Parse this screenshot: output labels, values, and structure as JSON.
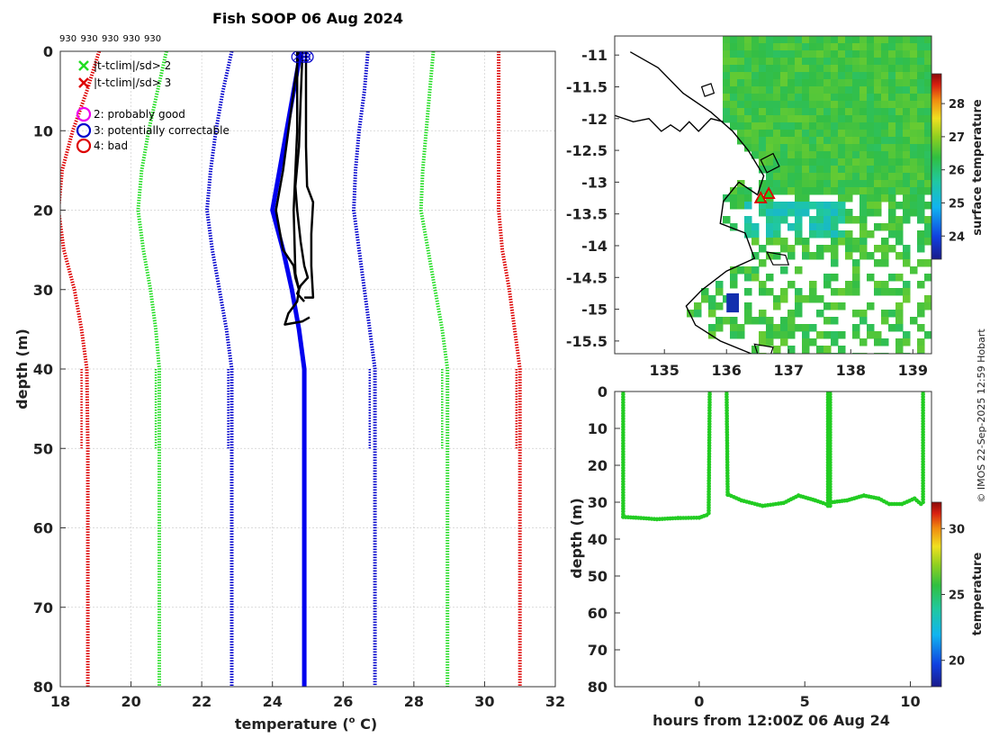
{
  "chart_data": [
    {
      "id": "profile",
      "type": "line",
      "title": "Fish SOOP 06 Aug 2024",
      "xlabel": "temperature (°C)",
      "xlabel_main": "temperature (",
      "xlabel_sup": "o",
      "xlabel_end": " C)",
      "ylabel": "depth (m)",
      "xlim": [
        18,
        32
      ],
      "ylim": [
        0,
        80
      ],
      "y_reversed": true,
      "xticks": [
        18,
        20,
        22,
        24,
        26,
        28,
        30,
        32
      ],
      "yticks": [
        0,
        10,
        20,
        30,
        40,
        50,
        60,
        70,
        80
      ],
      "grid": true,
      "top_labels": [
        "930",
        "930",
        "930",
        "930",
        "930"
      ],
      "legend": [
        {
          "symbol": "x",
          "color": "#22dd22",
          "label": "|t-tclim|/sd> 2"
        },
        {
          "symbol": "x",
          "color": "#dd0000",
          "label": "|t-tclim|/sd> 3"
        },
        {
          "symbol": "o",
          "color": "#ee00ee",
          "label": "2: probably good"
        },
        {
          "symbol": "o",
          "color": "#0000cc",
          "label": "3: potentially correctable"
        },
        {
          "symbol": "o",
          "color": "#dd0000",
          "label": "4: bad"
        }
      ],
      "climatology_series": [
        {
          "name": "mean-3sd",
          "color": "#dd0000",
          "style": "dotted",
          "points": [
            [
              19.1,
              0
            ],
            [
              18.75,
              5
            ],
            [
              18.35,
              10
            ],
            [
              18.05,
              15
            ],
            [
              17.95,
              20
            ],
            [
              18.1,
              25
            ],
            [
              18.4,
              30
            ],
            [
              18.6,
              35
            ],
            [
              18.75,
              40
            ],
            [
              18.78,
              50
            ],
            [
              18.78,
              60
            ],
            [
              18.78,
              70
            ],
            [
              18.78,
              80
            ]
          ]
        },
        {
          "name": "mean-2sd",
          "color": "#22dd22",
          "style": "dotted",
          "points": [
            [
              21.0,
              0
            ],
            [
              20.75,
              5
            ],
            [
              20.5,
              10
            ],
            [
              20.3,
              15
            ],
            [
              20.2,
              20
            ],
            [
              20.35,
              25
            ],
            [
              20.55,
              30
            ],
            [
              20.7,
              35
            ],
            [
              20.8,
              40
            ],
            [
              20.8,
              50
            ],
            [
              20.8,
              60
            ],
            [
              20.8,
              70
            ],
            [
              20.8,
              80
            ]
          ]
        },
        {
          "name": "mean-sd",
          "color": "#0000cc",
          "style": "dotted",
          "points": [
            [
              22.85,
              0
            ],
            [
              22.6,
              5
            ],
            [
              22.4,
              10
            ],
            [
              22.25,
              15
            ],
            [
              22.15,
              20
            ],
            [
              22.3,
              25
            ],
            [
              22.5,
              30
            ],
            [
              22.7,
              35
            ],
            [
              22.85,
              40
            ],
            [
              22.85,
              50
            ],
            [
              22.85,
              60
            ],
            [
              22.85,
              70
            ],
            [
              22.85,
              80
            ]
          ]
        },
        {
          "name": "mean+sd",
          "color": "#0000cc",
          "style": "dotted",
          "points": [
            [
              26.7,
              0
            ],
            [
              26.6,
              5
            ],
            [
              26.45,
              10
            ],
            [
              26.35,
              15
            ],
            [
              26.3,
              20
            ],
            [
              26.45,
              25
            ],
            [
              26.6,
              30
            ],
            [
              26.75,
              35
            ],
            [
              26.9,
              40
            ],
            [
              26.9,
              50
            ],
            [
              26.9,
              60
            ],
            [
              26.9,
              70
            ],
            [
              26.9,
              80
            ]
          ]
        },
        {
          "name": "mean+2sd",
          "color": "#22dd22",
          "style": "dotted",
          "points": [
            [
              28.55,
              0
            ],
            [
              28.45,
              5
            ],
            [
              28.35,
              10
            ],
            [
              28.25,
              15
            ],
            [
              28.2,
              20
            ],
            [
              28.4,
              25
            ],
            [
              28.6,
              30
            ],
            [
              28.8,
              35
            ],
            [
              28.95,
              40
            ],
            [
              28.95,
              50
            ],
            [
              28.95,
              60
            ],
            [
              28.95,
              70
            ],
            [
              28.95,
              80
            ]
          ]
        },
        {
          "name": "mean+3sd",
          "color": "#dd0000",
          "style": "dotted",
          "points": [
            [
              30.4,
              0
            ],
            [
              30.4,
              5
            ],
            [
              30.4,
              10
            ],
            [
              30.4,
              15
            ],
            [
              30.4,
              20
            ],
            [
              30.5,
              25
            ],
            [
              30.7,
              30
            ],
            [
              30.85,
              35
            ],
            [
              31.0,
              40
            ],
            [
              31.0,
              50
            ],
            [
              31.0,
              60
            ],
            [
              31.0,
              70
            ],
            [
              31.0,
              80
            ]
          ]
        }
      ],
      "lower_dotted_series": [
        {
          "color": "#dd0000",
          "points": [
            [
              18.6,
              40
            ],
            [
              18.6,
              50
            ]
          ]
        },
        {
          "color": "#22dd22",
          "points": [
            [
              20.7,
              40
            ],
            [
              20.7,
              50
            ]
          ]
        },
        {
          "color": "#0000cc",
          "points": [
            [
              22.75,
              40
            ],
            [
              22.75,
              50
            ]
          ]
        },
        {
          "color": "#0000cc",
          "points": [
            [
              26.75,
              40
            ],
            [
              26.75,
              50
            ]
          ]
        },
        {
          "color": "#22dd22",
          "points": [
            [
              28.8,
              40
            ],
            [
              28.8,
              50
            ]
          ]
        },
        {
          "color": "#dd0000",
          "points": [
            [
              30.9,
              40
            ],
            [
              30.9,
              50
            ]
          ]
        }
      ],
      "mean_series": {
        "name": "climatology mean",
        "color": "#0000ee",
        "points": [
          [
            24.8,
            0
          ],
          [
            24.6,
            5
          ],
          [
            24.4,
            10
          ],
          [
            24.2,
            15
          ],
          [
            24.0,
            20
          ],
          [
            24.3,
            25
          ],
          [
            24.55,
            30
          ],
          [
            24.75,
            35
          ],
          [
            24.9,
            40
          ],
          [
            24.9,
            50
          ],
          [
            24.9,
            60
          ],
          [
            24.9,
            70
          ],
          [
            24.9,
            80
          ]
        ]
      },
      "observed_profiles": [
        {
          "color": "#000000",
          "points": [
            [
              24.75,
              0
            ],
            [
              24.6,
              5
            ],
            [
              24.45,
              10
            ],
            [
              24.3,
              15
            ],
            [
              24.1,
              20
            ],
            [
              24.3,
              25
            ],
            [
              24.6,
              27
            ],
            [
              24.65,
              28.5
            ],
            [
              24.75,
              30
            ],
            [
              24.7,
              31.5
            ],
            [
              24.45,
              33
            ],
            [
              24.35,
              34.4
            ],
            [
              24.85,
              34
            ],
            [
              25.05,
              33.5
            ]
          ]
        },
        {
          "color": "#000000",
          "points": [
            [
              24.85,
              0
            ],
            [
              24.8,
              6
            ],
            [
              24.75,
              12
            ],
            [
              24.65,
              17
            ],
            [
              24.7,
              20
            ],
            [
              24.8,
              24
            ],
            [
              24.9,
              27
            ],
            [
              25.0,
              28.5
            ],
            [
              24.8,
              29.5
            ],
            [
              24.7,
              30.5
            ],
            [
              24.9,
              31.5
            ]
          ]
        },
        {
          "color": "#000000",
          "points": [
            [
              24.95,
              0
            ],
            [
              24.95,
              6
            ],
            [
              24.95,
              12
            ],
            [
              24.98,
              17
            ],
            [
              25.15,
              19
            ],
            [
              25.1,
              23
            ],
            [
              25.1,
              27
            ],
            [
              25.15,
              31
            ],
            [
              24.9,
              31
            ]
          ]
        },
        {
          "color": "#000000",
          "points": [
            [
              24.7,
              0
            ],
            [
              24.7,
              10
            ],
            [
              24.6,
              20
            ],
            [
              24.65,
              28
            ],
            [
              24.75,
              30
            ]
          ]
        }
      ],
      "flag_points": [
        {
          "x": 24.7,
          "y": 0.7
        },
        {
          "x": 24.9,
          "y": 0.7
        },
        {
          "x": 25.0,
          "y": 0.7
        }
      ]
    },
    {
      "id": "map",
      "type": "heatmap",
      "xlim": [
        134.2,
        139.3
      ],
      "ylim": [
        -15.7,
        -10.7
      ],
      "xticks": [
        135,
        136,
        137,
        138,
        139
      ],
      "yticks": [
        -11,
        -11.5,
        -12,
        -12.5,
        -13,
        -13.5,
        -14,
        -14.5,
        -15,
        -15.5
      ],
      "ytick_labels": [
        "-11",
        "-11.5",
        "-12",
        "-12.5",
        "-13",
        "-13.5",
        "-14",
        "-14.5",
        "-15",
        "-15.5"
      ],
      "colorbar_label": "surface temperature",
      "colorbar_range": [
        23.3,
        28.9
      ],
      "colorbar_ticks": [
        24,
        25,
        26,
        27,
        28
      ],
      "coastline": [
        [
          134.45,
          -10.95
        ],
        [
          134.9,
          -11.2
        ],
        [
          135.3,
          -11.6
        ],
        [
          135.75,
          -11.9
        ],
        [
          136.1,
          -12.2
        ],
        [
          136.35,
          -12.5
        ],
        [
          136.6,
          -12.9
        ],
        [
          136.5,
          -13.2
        ],
        [
          136.2,
          -13.0
        ],
        [
          135.95,
          -13.3
        ],
        [
          135.9,
          -13.65
        ],
        [
          136.3,
          -13.8
        ],
        [
          136.45,
          -14.2
        ],
        [
          136.0,
          -14.4
        ],
        [
          135.6,
          -14.7
        ],
        [
          135.35,
          -14.95
        ],
        [
          135.5,
          -15.25
        ],
        [
          135.9,
          -15.5
        ],
        [
          136.4,
          -15.7
        ]
      ],
      "peninsula": [
        [
          134.2,
          -11.95
        ],
        [
          134.5,
          -12.05
        ],
        [
          134.75,
          -12.0
        ],
        [
          134.95,
          -12.2
        ],
        [
          135.1,
          -12.1
        ],
        [
          135.25,
          -12.2
        ],
        [
          135.4,
          -12.05
        ],
        [
          135.55,
          -12.2
        ],
        [
          135.75,
          -12.0
        ],
        [
          135.95,
          -12.05
        ]
      ],
      "islands": [
        [
          [
            136.55,
            -12.65
          ],
          [
            136.75,
            -12.55
          ],
          [
            136.85,
            -12.75
          ],
          [
            136.65,
            -12.85
          ]
        ],
        [
          [
            135.6,
            -11.5
          ],
          [
            135.75,
            -11.45
          ],
          [
            135.8,
            -11.6
          ],
          [
            135.65,
            -11.65
          ]
        ],
        [
          [
            136.65,
            -14.1
          ],
          [
            136.95,
            -14.15
          ],
          [
            137.0,
            -14.3
          ],
          [
            136.75,
            -14.3
          ]
        ],
        [
          [
            136.45,
            -15.55
          ],
          [
            136.75,
            -15.6
          ],
          [
            136.7,
            -15.75
          ],
          [
            136.5,
            -15.7
          ]
        ]
      ],
      "cold_patch": {
        "lon": [
          136.0,
          136.2
        ],
        "lat": [
          -14.75,
          -15.05
        ],
        "value": 23.6
      },
      "markers": [
        {
          "type": "triangle",
          "lon": 136.68,
          "lat": -13.18,
          "color": "#dd0000"
        },
        {
          "type": "triangle",
          "lon": 136.55,
          "lat": -13.25,
          "color": "#dd0000"
        }
      ]
    },
    {
      "id": "section",
      "type": "scatter",
      "xlabel": "hours from 12:00Z 06 Aug 24",
      "ylabel": "depth (m)",
      "xlim": [
        -4,
        11
      ],
      "ylim": [
        0,
        80
      ],
      "y_reversed": true,
      "xticks": [
        0,
        5,
        10
      ],
      "yticks": [
        0,
        10,
        20,
        30,
        40,
        50,
        60,
        70,
        80
      ],
      "colorbar_label": "temperature",
      "colorbar_range": [
        18,
        32
      ],
      "colorbar_ticks": [
        20,
        25,
        30
      ],
      "point_color": "#22cc22",
      "segments": [
        [
          [
            -3.6,
            0
          ],
          [
            -3.6,
            34
          ]
        ],
        [
          [
            -3.6,
            34
          ],
          [
            -3,
            34.2
          ],
          [
            -2,
            34.6
          ],
          [
            -1,
            34.3
          ],
          [
            0,
            34.2
          ],
          [
            0.35,
            33.5
          ]
        ],
        [
          [
            0.45,
            33
          ],
          [
            0.5,
            0
          ]
        ],
        [
          [
            1.3,
            0
          ],
          [
            1.35,
            28
          ]
        ],
        [
          [
            1.4,
            28
          ],
          [
            2,
            29.5
          ],
          [
            3,
            31
          ],
          [
            4,
            30.2
          ],
          [
            4.7,
            28.2
          ],
          [
            5.5,
            29.5
          ],
          [
            6,
            30.5
          ]
        ],
        [
          [
            6.1,
            0
          ],
          [
            6.1,
            31
          ]
        ],
        [
          [
            6.2,
            0
          ],
          [
            6.2,
            31
          ]
        ],
        [
          [
            6.3,
            30
          ],
          [
            7,
            29.5
          ],
          [
            7.8,
            28.2
          ],
          [
            8.5,
            29
          ],
          [
            9,
            30.5
          ],
          [
            9.6,
            30.5
          ],
          [
            10.2,
            29
          ],
          [
            10.5,
            30.5
          ]
        ],
        [
          [
            10.6,
            0
          ],
          [
            10.6,
            30
          ]
        ]
      ]
    }
  ],
  "copyright": "© IMOS 22-Sep-2025 12:59 Hobart"
}
